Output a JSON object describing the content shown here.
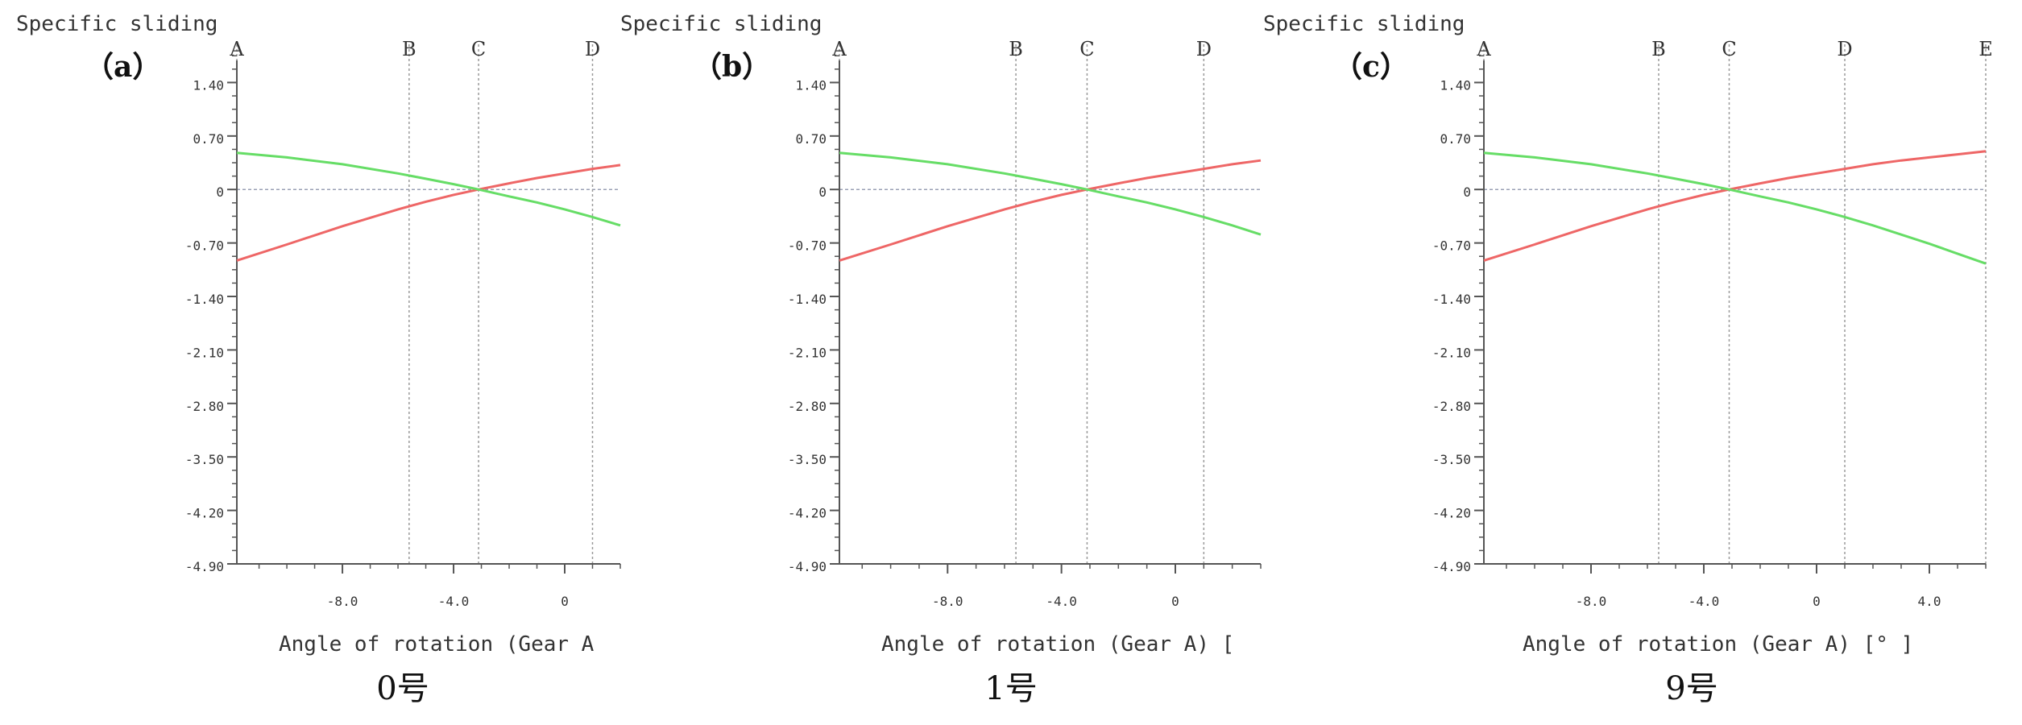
{
  "chart_data": [
    {
      "type": "line",
      "panel_label": "（a）",
      "caption": "0号",
      "ylabel": "Specific sliding",
      "xlabel": "Angle of rotation (Gear A",
      "xlim": [
        -11.8,
        2.0
      ],
      "ylim": [
        -4.9,
        1.9
      ],
      "yticks": [
        1.4,
        0.7,
        0,
        -0.7,
        -1.4,
        -2.1,
        -2.8,
        -3.5,
        -4.2,
        -4.9
      ],
      "ytick_labels": [
        "1.40",
        "0.70",
        "0",
        "-0.70",
        "-1.40",
        "-2.10",
        "-2.80",
        "-3.50",
        "-4.20",
        "-4.90"
      ],
      "xticks": [
        -8.0,
        -4.0,
        0
      ],
      "xtick_labels": [
        "-8.0",
        "-4.0",
        "0"
      ],
      "points": [
        {
          "name": "A",
          "x": -11.8
        },
        {
          "name": "B",
          "x": -5.6
        },
        {
          "name": "C",
          "x": -3.1
        },
        {
          "name": "D",
          "x": 1.0
        }
      ],
      "series": [
        {
          "color": "#ee6666",
          "x": [
            -11.8,
            -10,
            -8,
            -6,
            -5,
            -4,
            -3.1,
            -2,
            -1,
            0,
            1,
            2
          ],
          "values": [
            -0.93,
            -0.72,
            -0.48,
            -0.26,
            -0.16,
            -0.07,
            0,
            0.08,
            0.15,
            0.21,
            0.27,
            0.32
          ]
        },
        {
          "color": "#66dd66",
          "x": [
            -11.8,
            -10,
            -8,
            -6,
            -5,
            -4,
            -3.1,
            -2,
            -1,
            0,
            1,
            2
          ],
          "values": [
            0.48,
            0.42,
            0.33,
            0.21,
            0.14,
            0.07,
            0,
            -0.09,
            -0.17,
            -0.26,
            -0.36,
            -0.47
          ]
        }
      ]
    },
    {
      "type": "line",
      "panel_label": "（b）",
      "caption": "1号",
      "ylabel": "Specific sliding",
      "xlabel": "Angle of rotation (Gear A) [",
      "xlim": [
        -11.8,
        3.0
      ],
      "ylim": [
        -4.9,
        1.9
      ],
      "yticks": [
        1.4,
        0.7,
        0,
        -0.7,
        -1.4,
        -2.1,
        -2.8,
        -3.5,
        -4.2,
        -4.9
      ],
      "ytick_labels": [
        "1.40",
        "0.70",
        "0",
        "-0.70",
        "-1.40",
        "-2.10",
        "-2.80",
        "-3.50",
        "-4.20",
        "-4.90"
      ],
      "xticks": [
        -8.0,
        -4.0,
        0
      ],
      "xtick_labels": [
        "-8.0",
        "-4.0",
        "0"
      ],
      "points": [
        {
          "name": "A",
          "x": -11.8
        },
        {
          "name": "B",
          "x": -5.6
        },
        {
          "name": "C",
          "x": -3.1
        },
        {
          "name": "D",
          "x": 1.0
        }
      ],
      "series": [
        {
          "color": "#ee6666",
          "x": [
            -11.8,
            -10,
            -8,
            -6,
            -5,
            -4,
            -3.1,
            -2,
            -1,
            0,
            1,
            2,
            3
          ],
          "values": [
            -0.93,
            -0.72,
            -0.48,
            -0.26,
            -0.16,
            -0.07,
            0,
            0.08,
            0.15,
            0.21,
            0.27,
            0.33,
            0.38
          ]
        },
        {
          "color": "#66dd66",
          "x": [
            -11.8,
            -10,
            -8,
            -6,
            -5,
            -4,
            -3.1,
            -2,
            -1,
            0,
            1,
            2,
            3
          ],
          "values": [
            0.48,
            0.42,
            0.33,
            0.21,
            0.14,
            0.07,
            0,
            -0.09,
            -0.17,
            -0.26,
            -0.36,
            -0.47,
            -0.59
          ]
        }
      ]
    },
    {
      "type": "line",
      "panel_label": "（c）",
      "caption": "9号",
      "ylabel": "Specific sliding",
      "xlabel": "Angle of rotation (Gear A) [° ]",
      "xlim": [
        -11.8,
        6.0
      ],
      "ylim": [
        -4.9,
        1.9
      ],
      "yticks": [
        1.4,
        0.7,
        0,
        -0.7,
        -1.4,
        -2.1,
        -2.8,
        -3.5,
        -4.2,
        -4.9
      ],
      "ytick_labels": [
        "1.40",
        "0.70",
        "0",
        "-0.70",
        "-1.40",
        "-2.10",
        "-2.80",
        "-3.50",
        "-4.20",
        "-4.90"
      ],
      "xticks": [
        -8.0,
        -4.0,
        0,
        4.0
      ],
      "xtick_labels": [
        "-8.0",
        "-4.0",
        "0",
        "4.0"
      ],
      "points": [
        {
          "name": "A",
          "x": -11.8
        },
        {
          "name": "B",
          "x": -5.6
        },
        {
          "name": "C",
          "x": -3.1
        },
        {
          "name": "D",
          "x": 1.0
        },
        {
          "name": "E",
          "x": 6.0
        }
      ],
      "series": [
        {
          "color": "#ee6666",
          "x": [
            -11.8,
            -10,
            -8,
            -6,
            -5,
            -4,
            -3.1,
            -2,
            -1,
            0,
            1,
            2,
            3,
            4,
            5,
            6
          ],
          "values": [
            -0.93,
            -0.72,
            -0.48,
            -0.26,
            -0.16,
            -0.07,
            0,
            0.08,
            0.15,
            0.21,
            0.27,
            0.33,
            0.38,
            0.42,
            0.46,
            0.5
          ]
        },
        {
          "color": "#66dd66",
          "x": [
            -11.8,
            -10,
            -8,
            -6,
            -5,
            -4,
            -3.1,
            -2,
            -1,
            0,
            1,
            2,
            3,
            4,
            5,
            6
          ],
          "values": [
            0.48,
            0.42,
            0.33,
            0.21,
            0.14,
            0.07,
            0,
            -0.09,
            -0.17,
            -0.26,
            -0.36,
            -0.47,
            -0.59,
            -0.71,
            -0.84,
            -0.97
          ]
        }
      ]
    }
  ]
}
